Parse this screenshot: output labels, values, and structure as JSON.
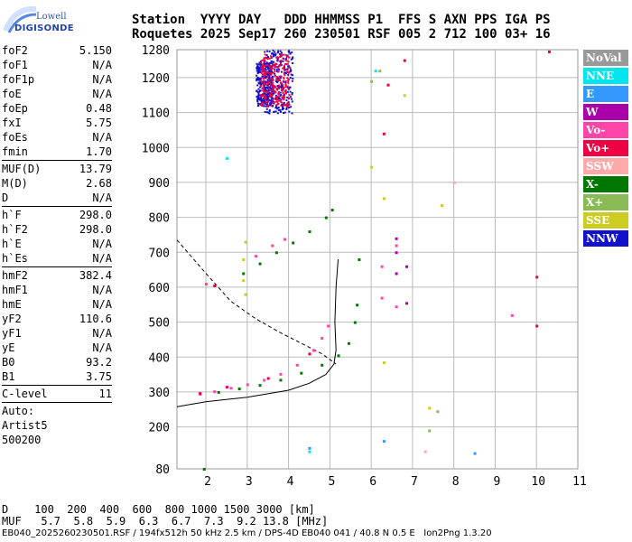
{
  "logo": {
    "line1": "Lowell",
    "line2": "DIGISONDE"
  },
  "header": {
    "line1": "Station  YYYY DAY   DDD HHMMSS P1  FFS S AXN PPS IGA PS",
    "line2": "Roquetes 2025 Sep17 260 230501 RSF 005 2 712 100 03+ 16"
  },
  "params": {
    "g1": [
      {
        "k": "foF2",
        "v": "5.150"
      },
      {
        "k": "foF1",
        "v": "N/A"
      },
      {
        "k": "foF1p",
        "v": "N/A"
      },
      {
        "k": "foE",
        "v": "N/A"
      },
      {
        "k": "foEp",
        "v": "0.48"
      },
      {
        "k": "fxI",
        "v": "5.75"
      },
      {
        "k": "foEs",
        "v": "N/A"
      },
      {
        "k": "fmin",
        "v": "1.70"
      }
    ],
    "g2": [
      {
        "k": "MUF(D)",
        "v": "13.79"
      },
      {
        "k": "M(D)",
        "v": "2.68"
      },
      {
        "k": "D",
        "v": "N/A"
      }
    ],
    "g3": [
      {
        "k": "h`F",
        "v": "298.0"
      },
      {
        "k": "h`F2",
        "v": "298.0"
      },
      {
        "k": "h`E",
        "v": "N/A"
      },
      {
        "k": "h`Es",
        "v": "N/A"
      }
    ],
    "g4": [
      {
        "k": "hmF2",
        "v": "382.4"
      },
      {
        "k": "hmF1",
        "v": "N/A"
      },
      {
        "k": "hmE",
        "v": "N/A"
      },
      {
        "k": "yF2",
        "v": "110.6"
      },
      {
        "k": "yF1",
        "v": "N/A"
      },
      {
        "k": "yE",
        "v": "N/A"
      },
      {
        "k": "B0",
        "v": "93.2"
      },
      {
        "k": "B1",
        "v": "3.75"
      }
    ],
    "clevel": {
      "k": "C-level",
      "v": "11"
    },
    "auto": "Auto:",
    "artist": "Artist5",
    "code": "500200"
  },
  "legend": [
    {
      "label": "NoVal",
      "color": "#999999"
    },
    {
      "label": "NNE",
      "color": "#00e5ee"
    },
    {
      "label": "E",
      "color": "#3399ff"
    },
    {
      "label": "W",
      "color": "#aa00aa"
    },
    {
      "label": "Vo-",
      "color": "#ff44aa"
    },
    {
      "label": "Vo+",
      "color": "#ee0044"
    },
    {
      "label": "SSW",
      "color": "#ffaaaa"
    },
    {
      "label": "X-",
      "color": "#007700"
    },
    {
      "label": "X+",
      "color": "#88bb55"
    },
    {
      "label": "SSE",
      "color": "#cccc22"
    },
    {
      "label": "NNW",
      "color": "#1111cc"
    }
  ],
  "bottom": {
    "d_line": "D    100  200  400  600  800 1000 1500 3000 [km]",
    "muf_line": "MUF   5.7  5.8  5.9  6.3  6.7  7.3  9.2 13.8 [MHz]"
  },
  "footer": "EB040_2025260230501.RSF / 194fx512h 50 kHz 2.5 km / DPS-4D EB040 041 / 40.8 N 0.5 E   Ion2Png 1.3.20",
  "chart_data": {
    "type": "scatter",
    "xlim": [
      1.3,
      11
    ],
    "ylim": [
      80,
      1280
    ],
    "x_ticks": [
      2,
      3,
      4,
      5,
      6,
      7,
      8,
      9,
      10,
      11
    ],
    "y_ticks": [
      80,
      200,
      300,
      400,
      500,
      600,
      700,
      800,
      900,
      1000,
      1100,
      1200,
      1280
    ],
    "grid": true,
    "series": [
      {
        "name": "Vo-",
        "color": "#ff44aa",
        "points": [
          [
            1.85,
            295
          ],
          [
            2.2,
            302
          ],
          [
            2.6,
            312
          ],
          [
            3.0,
            322
          ],
          [
            3.4,
            335
          ],
          [
            3.8,
            352
          ],
          [
            4.2,
            378
          ],
          [
            4.6,
            420
          ],
          [
            4.8,
            455
          ],
          [
            4.95,
            490
          ],
          [
            3.2,
            690
          ],
          [
            3.6,
            720
          ],
          [
            3.9,
            738
          ],
          [
            6.6,
            720
          ],
          [
            6.25,
            660
          ],
          [
            6.25,
            570
          ],
          [
            6.6,
            545
          ],
          [
            9.4,
            520
          ],
          [
            2.0,
            610
          ]
        ]
      },
      {
        "name": "X-",
        "color": "#007700",
        "points": [
          [
            2.3,
            300
          ],
          [
            2.8,
            310
          ],
          [
            3.3,
            320
          ],
          [
            3.8,
            335
          ],
          [
            4.3,
            355
          ],
          [
            4.8,
            378
          ],
          [
            5.2,
            405
          ],
          [
            5.45,
            440
          ],
          [
            5.6,
            500
          ],
          [
            5.65,
            550
          ],
          [
            2.9,
            640
          ],
          [
            3.3,
            668
          ],
          [
            3.7,
            700
          ],
          [
            4.1,
            728
          ],
          [
            4.5,
            760
          ],
          [
            4.9,
            800
          ],
          [
            5.05,
            822
          ],
          [
            5.7,
            680
          ],
          [
            1.95,
            80
          ]
        ]
      },
      {
        "name": "Vo+",
        "color": "#ee0044",
        "points": [
          [
            1.85,
            297
          ],
          [
            2.5,
            315
          ],
          [
            3.5,
            340
          ],
          [
            4.5,
            410
          ],
          [
            2.2,
            605
          ],
          [
            6.8,
            1250
          ],
          [
            10.3,
            1275
          ],
          [
            10.0,
            630
          ],
          [
            10.0,
            490
          ],
          [
            6.4,
            1180
          ],
          [
            6.3,
            1040
          ]
        ]
      },
      {
        "name": "SSE",
        "color": "#cccc22",
        "points": [
          [
            2.9,
            620
          ],
          [
            2.9,
            680
          ],
          [
            2.95,
            730
          ],
          [
            6.3,
            385
          ],
          [
            6.3,
            855
          ],
          [
            6.8,
            1150
          ],
          [
            7.4,
            255
          ],
          [
            7.7,
            835
          ],
          [
            6.0,
            945
          ],
          [
            2.95,
            580
          ]
        ]
      },
      {
        "name": "W",
        "color": "#aa00aa",
        "points": [
          [
            6.6,
            640
          ],
          [
            6.6,
            700
          ],
          [
            6.6,
            740
          ],
          [
            6.85,
            555
          ],
          [
            6.85,
            660
          ]
        ]
      },
      {
        "name": "E",
        "color": "#3399ff",
        "points": [
          [
            6.3,
            160
          ],
          [
            4.5,
            140
          ],
          [
            8.5,
            125
          ]
        ]
      },
      {
        "name": "NNE",
        "color": "#00e5ee",
        "points": [
          [
            2.5,
            970
          ],
          [
            6.1,
            1220
          ],
          [
            4.5,
            130
          ]
        ]
      },
      {
        "name": "X+",
        "color": "#88bb55",
        "points": [
          [
            6.0,
            1190
          ],
          [
            6.2,
            1220
          ],
          [
            7.6,
            245
          ],
          [
            7.4,
            190
          ]
        ]
      },
      {
        "name": "SSW",
        "color": "#ffaaaa",
        "points": [
          [
            7.3,
            130
          ],
          [
            8.0,
            900
          ]
        ]
      }
    ],
    "traces": [
      {
        "name": "model-O",
        "style": "solid",
        "points": [
          [
            1.3,
            258
          ],
          [
            2.0,
            272
          ],
          [
            3.0,
            285
          ],
          [
            4.0,
            305
          ],
          [
            4.5,
            325
          ],
          [
            4.9,
            350
          ],
          [
            5.1,
            380
          ],
          [
            5.15,
            420
          ],
          [
            5.12,
            500
          ],
          [
            5.15,
            600
          ],
          [
            5.2,
            680
          ]
        ]
      },
      {
        "name": "model-dashed",
        "style": "dashed",
        "points": [
          [
            1.3,
            735
          ],
          [
            2.0,
            640
          ],
          [
            2.6,
            560
          ],
          [
            3.2,
            510
          ],
          [
            3.8,
            470
          ],
          [
            4.3,
            440
          ],
          [
            4.8,
            410
          ],
          [
            5.15,
            380
          ]
        ]
      }
    ],
    "clusters": [
      {
        "name": "NNW",
        "color": "#1111cc",
        "x": [
          3.4,
          4.1
        ],
        "y": [
          1100,
          1280
        ]
      },
      {
        "name": "NNW",
        "color": "#1111cc",
        "x": [
          3.2,
          3.6
        ],
        "y": [
          1120,
          1250
        ]
      },
      {
        "name": "Vo+",
        "color": "#ee0044",
        "x": [
          3.3,
          4.0
        ],
        "y": [
          1120,
          1270
        ]
      }
    ]
  }
}
